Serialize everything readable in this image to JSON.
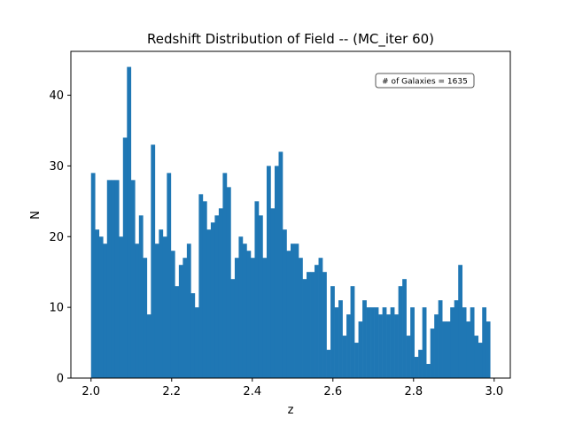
{
  "chart_data": {
    "type": "bar",
    "title": "Redshift Distribution of Field -- (MC_iter 60)",
    "xlabel": "z",
    "ylabel": "N",
    "annotation": "# of Galaxies = 1635",
    "annotation_position": "top-right",
    "bar_color": "#1f77b4",
    "grid": false,
    "xlim": [
      1.95,
      3.04
    ],
    "ylim": [
      0,
      46.2
    ],
    "xticks": [
      2.0,
      2.2,
      2.4,
      2.6,
      2.8,
      3.0
    ],
    "xtick_labels": [
      "2.0",
      "2.2",
      "2.4",
      "2.6",
      "2.8",
      "3.0"
    ],
    "yticks": [
      0,
      10,
      20,
      30,
      40
    ],
    "ytick_labels": [
      "0",
      "10",
      "20",
      "30",
      "40"
    ],
    "bin_start": 2.0,
    "bin_end": 2.99,
    "bin_width": 0.0099,
    "values": [
      29,
      21,
      20,
      19,
      28,
      28,
      28,
      20,
      34,
      44,
      28,
      19,
      23,
      17,
      9,
      33,
      19,
      21,
      20,
      29,
      18,
      13,
      16,
      17,
      19,
      12,
      10,
      26,
      25,
      21,
      22,
      23,
      24,
      29,
      27,
      14,
      17,
      20,
      19,
      18,
      17,
      25,
      23,
      17,
      30,
      24,
      30,
      32,
      21,
      18,
      19,
      19,
      17,
      14,
      15,
      15,
      16,
      17,
      15,
      4,
      13,
      10,
      11,
      6,
      9,
      13,
      5,
      8,
      11,
      10,
      10,
      10,
      9,
      10,
      9,
      10,
      9,
      13,
      14,
      6,
      10,
      3,
      4,
      10,
      2,
      7,
      9,
      11,
      8,
      8,
      10,
      11,
      16,
      10,
      8,
      10,
      6,
      5,
      10,
      8
    ]
  }
}
